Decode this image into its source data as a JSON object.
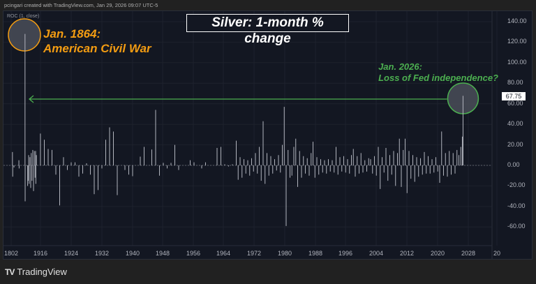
{
  "header": {
    "credit": "pcingari created with TradingView.com, Jan 29, 2026 09:07 UTC-5"
  },
  "indicator_label": "ROC (1, close)",
  "footer": {
    "logo_mark": "TV",
    "logo_text": "TradingView"
  },
  "colors": {
    "background": "#131722",
    "bars": "#b2b5be",
    "civil_war": "#f39c12",
    "fed": "#4caf50"
  },
  "chart_data": {
    "type": "bar",
    "title": "Silver: 1-month % change",
    "ylim": [
      -70,
      150
    ],
    "y_ticks": [
      "140.00",
      "120.00",
      "100.00",
      "80.00",
      "60.00",
      "40.00",
      "20.00",
      "0.00",
      "-20.00",
      "-40.00",
      "-60.00"
    ],
    "x_ticks": [
      "1802",
      "1916",
      "1924",
      "1932",
      "1940",
      "1948",
      "1956",
      "1964",
      "1972",
      "1980",
      "1988",
      "1996",
      "2004",
      "2012",
      "2020",
      "2028",
      "20"
    ],
    "last_value_label": "67.75",
    "grid": true,
    "annotations": [
      {
        "line1": "Jan. 1864:",
        "line2": "American Civil War",
        "date": 1864,
        "value": 128
      },
      {
        "line1": "Jan. 2026:",
        "line2": "Loss of Fed independence?",
        "date": 2026.08,
        "value": 67.75
      }
    ],
    "sparse_bars": [
      [
        1807,
        13
      ],
      [
        1808,
        -11
      ],
      [
        1813,
        -2
      ],
      [
        1832,
        5
      ],
      [
        1833,
        -3
      ],
      [
        1864,
        128
      ],
      [
        1864.5,
        -35
      ],
      [
        1866,
        -20
      ],
      [
        1868,
        -15
      ],
      [
        1870,
        10
      ],
      [
        1872,
        -18
      ],
      [
        1875,
        8
      ],
      [
        1878,
        -22
      ],
      [
        1880,
        12
      ],
      [
        1883,
        -15
      ],
      [
        1886,
        15
      ],
      [
        1889,
        -25
      ],
      [
        1892,
        14
      ],
      [
        1895,
        -12
      ],
      [
        1897,
        14
      ],
      [
        1898,
        -18
      ],
      [
        1900,
        10
      ],
      [
        1915.8,
        31
      ],
      [
        1917,
        25
      ],
      [
        1918,
        16
      ],
      [
        1919,
        15
      ],
      [
        1920,
        -9
      ],
      [
        1921,
        -39
      ],
      [
        1922,
        8
      ],
      [
        1923,
        -4.5
      ],
      [
        1924,
        3
      ],
      [
        1925,
        3
      ],
      [
        1926,
        -11
      ],
      [
        1927,
        -8
      ],
      [
        1928,
        2
      ],
      [
        1929,
        -9
      ],
      [
        1930,
        -28
      ],
      [
        1931,
        -24
      ],
      [
        1932,
        -3
      ],
      [
        1933,
        25
      ],
      [
        1934,
        37
      ],
      [
        1935,
        33
      ],
      [
        1936,
        -29
      ],
      [
        1938,
        -4.5
      ],
      [
        1939,
        -9
      ],
      [
        1940,
        -10.5
      ],
      [
        1942,
        8.5
      ],
      [
        1943,
        18
      ],
      [
        1945,
        15.5
      ],
      [
        1946,
        54
      ],
      [
        1947,
        -10
      ],
      [
        1948,
        2.5
      ],
      [
        1949,
        -3
      ],
      [
        1950,
        2.5
      ],
      [
        1951,
        20
      ],
      [
        1952,
        -4.5
      ],
      [
        1955,
        5
      ],
      [
        1956,
        3
      ],
      [
        1958,
        -3
      ],
      [
        1959,
        3
      ],
      [
        1962,
        17
      ],
      [
        1963,
        18
      ],
      [
        1964,
        1
      ],
      [
        1965,
        -1
      ],
      [
        1966,
        1
      ],
      [
        2025.9,
        28
      ],
      [
        2026.08,
        67.75
      ]
    ],
    "dense_bars": {
      "start": 1967,
      "step": 0.5,
      "values": [
        24,
        -14,
        8,
        -12,
        6,
        -8,
        5,
        -10,
        7,
        -6,
        12,
        -8,
        18,
        -15,
        43,
        -18,
        12,
        -10,
        9,
        -8,
        6,
        -5,
        10,
        -7,
        20,
        57,
        -59,
        15,
        -12,
        -10,
        18,
        26,
        -21,
        14,
        -12,
        9,
        -8,
        7,
        -10,
        12,
        23,
        -12,
        8,
        -9,
        6,
        -7,
        5,
        -8,
        6,
        -6,
        5,
        -7,
        18,
        -9,
        8,
        -6,
        9,
        -7,
        6,
        -8,
        10,
        16,
        -11,
        9,
        -8,
        12,
        -7,
        5,
        -6,
        7,
        6,
        -8,
        9,
        -10,
        18,
        -23,
        8,
        -7,
        17,
        -15,
        10,
        -9,
        14,
        -20,
        12,
        26,
        -21,
        15,
        26,
        -27,
        14,
        -13,
        10,
        -16,
        8,
        -11,
        7,
        -9,
        13,
        -8,
        9,
        -8,
        6,
        -7,
        8,
        -6,
        -17,
        33,
        -10,
        12,
        -11,
        14,
        -9,
        12,
        -8,
        15,
        10,
        18
      ]
    }
  }
}
